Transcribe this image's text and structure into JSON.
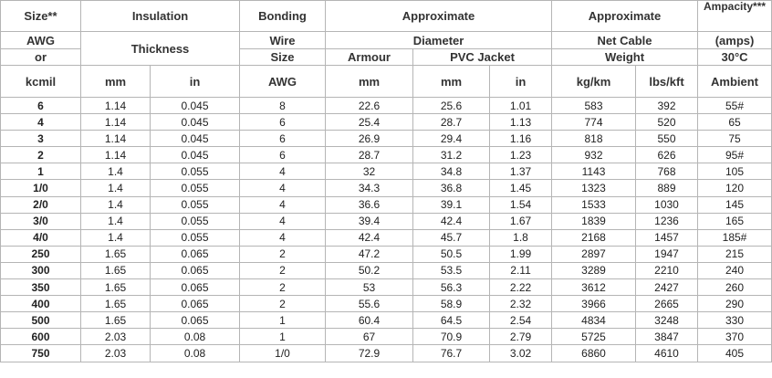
{
  "header": {
    "rows": [
      [
        "Size**",
        "Insulation",
        "Bonding",
        "Approximate",
        "Approximate",
        "Ampacity***"
      ],
      [
        "AWG",
        "Thickness",
        "Wire",
        "Diameter",
        "Net Cable",
        "(amps)"
      ],
      [
        "or",
        "Size",
        "Armour",
        "PVC Jacket",
        "Weight",
        "30°C"
      ],
      [
        "kcmil",
        "mm",
        "in",
        "AWG",
        "mm",
        "mm",
        "in",
        "kg/km",
        "lbs/kft",
        "Ambient"
      ]
    ]
  },
  "table": {
    "rows": [
      [
        "6",
        "1.14",
        "0.045",
        "8",
        "22.6",
        "25.6",
        "1.01",
        "583",
        "392",
        "55#"
      ],
      [
        "4",
        "1.14",
        "0.045",
        "6",
        "25.4",
        "28.7",
        "1.13",
        "774",
        "520",
        "65"
      ],
      [
        "3",
        "1.14",
        "0.045",
        "6",
        "26.9",
        "29.4",
        "1.16",
        "818",
        "550",
        "75"
      ],
      [
        "2",
        "1.14",
        "0.045",
        "6",
        "28.7",
        "31.2",
        "1.23",
        "932",
        "626",
        "95#"
      ],
      [
        "1",
        "1.4",
        "0.055",
        "4",
        "32",
        "34.8",
        "1.37",
        "1143",
        "768",
        "105"
      ],
      [
        "1/0",
        "1.4",
        "0.055",
        "4",
        "34.3",
        "36.8",
        "1.45",
        "1323",
        "889",
        "120"
      ],
      [
        "2/0",
        "1.4",
        "0.055",
        "4",
        "36.6",
        "39.1",
        "1.54",
        "1533",
        "1030",
        "145"
      ],
      [
        "3/0",
        "1.4",
        "0.055",
        "4",
        "39.4",
        "42.4",
        "1.67",
        "1839",
        "1236",
        "165"
      ],
      [
        "4/0",
        "1.4",
        "0.055",
        "4",
        "42.4",
        "45.7",
        "1.8",
        "2168",
        "1457",
        "185#"
      ],
      [
        "250",
        "1.65",
        "0.065",
        "2",
        "47.2",
        "50.5",
        "1.99",
        "2897",
        "1947",
        "215"
      ],
      [
        "300",
        "1.65",
        "0.065",
        "2",
        "50.2",
        "53.5",
        "2.11",
        "3289",
        "2210",
        "240"
      ],
      [
        "350",
        "1.65",
        "0.065",
        "2",
        "53",
        "56.3",
        "2.22",
        "3612",
        "2427",
        "260"
      ],
      [
        "400",
        "1.65",
        "0.065",
        "2",
        "55.6",
        "58.9",
        "2.32",
        "3966",
        "2665",
        "290"
      ],
      [
        "500",
        "1.65",
        "0.065",
        "1",
        "60.4",
        "64.5",
        "2.54",
        "4834",
        "3248",
        "330"
      ],
      [
        "600",
        "2.03",
        "0.08",
        "1",
        "67",
        "70.9",
        "2.79",
        "5725",
        "3847",
        "370"
      ],
      [
        "750",
        "2.03",
        "0.08",
        "1/0",
        "72.9",
        "76.7",
        "3.02",
        "6860",
        "4610",
        "405"
      ]
    ]
  }
}
